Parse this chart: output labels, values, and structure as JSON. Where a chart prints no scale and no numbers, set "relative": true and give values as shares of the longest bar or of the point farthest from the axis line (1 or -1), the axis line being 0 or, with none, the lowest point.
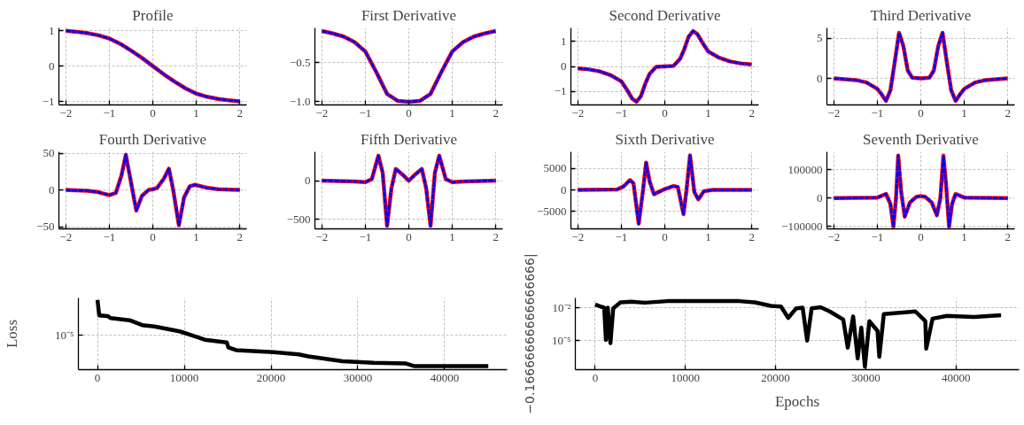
{
  "chart_data": [
    {
      "type": "line",
      "title": "Profile",
      "grid": true,
      "xlim": [
        -2.16,
        2.16
      ],
      "xticks": [
        -2,
        -1,
        0,
        1,
        2
      ],
      "ylim": [
        -1.1,
        1.08
      ],
      "yticks": [
        -1,
        0,
        1
      ],
      "x": [
        -2,
        -1.75,
        -1.5,
        -1.25,
        -1,
        -0.75,
        -0.5,
        -0.25,
        0,
        0.25,
        0.5,
        0.75,
        1,
        1.25,
        1.5,
        1.75,
        2
      ],
      "series": [
        {
          "color": "#ff0000",
          "line_style": "solid",
          "values": [
            1.0,
            0.97,
            0.93,
            0.87,
            0.78,
            0.63,
            0.44,
            0.23,
            0,
            -0.23,
            -0.44,
            -0.63,
            -0.78,
            -0.87,
            -0.93,
            -0.97,
            -1.0
          ]
        },
        {
          "color": "#0000ff",
          "line_style": "dashed",
          "values": [
            1.0,
            0.97,
            0.93,
            0.87,
            0.78,
            0.63,
            0.44,
            0.23,
            0,
            -0.23,
            -0.44,
            -0.63,
            -0.78,
            -0.87,
            -0.93,
            -0.97,
            -1.0
          ]
        }
      ]
    },
    {
      "type": "line",
      "title": "First Derivative",
      "grid": true,
      "xlim": [
        -2.16,
        2.16
      ],
      "xticks": [
        -2,
        -1,
        0,
        1,
        2
      ],
      "ylim": [
        -1.04,
        -0.06
      ],
      "yticks": [
        {
          "value": -1,
          "label": "−1.0"
        },
        -0.5
      ],
      "x": [
        -2,
        -1.75,
        -1.5,
        -1.25,
        -1,
        -0.75,
        -0.5,
        -0.25,
        0,
        0.25,
        0.5,
        0.75,
        1,
        1.25,
        1.5,
        1.75,
        2
      ],
      "series": [
        {
          "color": "#ff0000",
          "line_style": "solid",
          "values": [
            -0.1,
            -0.13,
            -0.17,
            -0.24,
            -0.36,
            -0.62,
            -0.9,
            -0.99,
            -1.0,
            -0.99,
            -0.9,
            -0.62,
            -0.36,
            -0.24,
            -0.17,
            -0.13,
            -0.1
          ]
        },
        {
          "color": "#0000ff",
          "line_style": "dashed",
          "values": [
            -0.1,
            -0.13,
            -0.17,
            -0.24,
            -0.36,
            -0.62,
            -0.9,
            -0.99,
            -1.0,
            -0.99,
            -0.9,
            -0.62,
            -0.36,
            -0.24,
            -0.17,
            -0.13,
            -0.1
          ]
        }
      ]
    },
    {
      "type": "line",
      "title": "Second Derivative",
      "grid": true,
      "xlim": [
        -2.16,
        2.16
      ],
      "xticks": [
        -2,
        -1,
        0,
        1,
        2
      ],
      "ylim": [
        -1.55,
        1.55
      ],
      "yticks": [
        -1,
        0,
        1
      ],
      "x": [
        -2,
        -1.75,
        -1.5,
        -1.25,
        -1,
        -0.85,
        -0.75,
        -0.65,
        -0.55,
        -0.45,
        -0.35,
        -0.2,
        0,
        0.2,
        0.35,
        0.45,
        0.55,
        0.65,
        0.75,
        0.85,
        1,
        1.25,
        1.5,
        1.75,
        2
      ],
      "series": [
        {
          "color": "#ff0000",
          "line_style": "solid",
          "values": [
            -0.08,
            -0.12,
            -0.2,
            -0.35,
            -0.6,
            -1.0,
            -1.3,
            -1.42,
            -1.2,
            -0.7,
            -0.3,
            -0.02,
            0,
            0.02,
            0.3,
            0.7,
            1.2,
            1.42,
            1.3,
            1.0,
            0.6,
            0.35,
            0.2,
            0.12,
            0.08
          ]
        },
        {
          "color": "#0000ff",
          "line_style": "dashed",
          "values": [
            -0.08,
            -0.12,
            -0.2,
            -0.35,
            -0.6,
            -1.0,
            -1.3,
            -1.42,
            -1.2,
            -0.7,
            -0.3,
            -0.02,
            0,
            0.02,
            0.3,
            0.7,
            1.2,
            1.42,
            1.3,
            1.0,
            0.6,
            0.35,
            0.2,
            0.12,
            0.08
          ]
        }
      ]
    },
    {
      "type": "line",
      "title": "Third Derivative",
      "grid": true,
      "xlim": [
        -2.16,
        2.16
      ],
      "xticks": [
        -2,
        -1,
        0,
        1,
        2
      ],
      "ylim": [
        -3.3,
        6.3
      ],
      "yticks": [
        0,
        5
      ],
      "x": [
        -2,
        -1.5,
        -1.25,
        -1,
        -0.9,
        -0.8,
        -0.7,
        -0.6,
        -0.5,
        -0.4,
        -0.3,
        -0.2,
        0,
        0.2,
        0.3,
        0.4,
        0.5,
        0.6,
        0.7,
        0.8,
        0.9,
        1,
        1.25,
        1.5,
        2
      ],
      "series": [
        {
          "color": "#ff0000",
          "line_style": "solid",
          "values": [
            0,
            -0.2,
            -0.5,
            -1.3,
            -2.0,
            -2.8,
            -1.5,
            2.0,
            5.7,
            4.0,
            1.0,
            0.1,
            0,
            0.1,
            1.0,
            4.0,
            5.7,
            2.0,
            -1.5,
            -2.8,
            -2.0,
            -1.3,
            -0.5,
            -0.2,
            0
          ]
        },
        {
          "color": "#0000ff",
          "line_style": "dashed",
          "values": [
            0,
            -0.2,
            -0.5,
            -1.3,
            -2.0,
            -2.8,
            -1.5,
            2.0,
            5.7,
            4.0,
            1.0,
            0.1,
            0,
            0.1,
            1.0,
            4.0,
            5.7,
            2.0,
            -1.5,
            -2.8,
            -2.0,
            -1.3,
            -0.5,
            -0.2,
            0
          ]
        }
      ]
    },
    {
      "type": "line",
      "title": "Fourth Derivative",
      "grid": true,
      "xlim": [
        -2.16,
        2.16
      ],
      "xticks": [
        -2,
        -1,
        0,
        1,
        2
      ],
      "ylim": [
        -53,
        52
      ],
      "yticks": [
        -50,
        0,
        50
      ],
      "x": [
        -2,
        -1.5,
        -1.25,
        -1,
        -0.85,
        -0.72,
        -0.62,
        -0.5,
        -0.38,
        -0.25,
        -0.1,
        0,
        0.1,
        0.25,
        0.37,
        0.47,
        0.6,
        0.72,
        0.85,
        0.97,
        1.25,
        1.5,
        2
      ],
      "series": [
        {
          "color": "#ff0000",
          "line_style": "solid",
          "values": [
            0,
            -1,
            -3,
            -7,
            -4,
            20,
            48,
            10,
            -28,
            -8,
            0,
            1,
            3,
            15,
            29,
            0,
            -48,
            -10,
            5,
            7,
            3,
            1,
            0
          ]
        },
        {
          "color": "#0000ff",
          "line_style": "dashed",
          "values": [
            0,
            -1,
            -3,
            -7,
            -4,
            20,
            48,
            10,
            -28,
            -8,
            0,
            1,
            3,
            15,
            29,
            0,
            -48,
            -10,
            5,
            7,
            3,
            1,
            0
          ]
        }
      ]
    },
    {
      "type": "line",
      "title": "Fifth Derivative",
      "grid": true,
      "xlim": [
        -2.16,
        2.16
      ],
      "xticks": [
        -2,
        -1,
        0,
        1,
        2
      ],
      "ylim": [
        -620,
        370
      ],
      "yticks": [
        -500,
        0
      ],
      "x": [
        -2,
        -1.25,
        -1,
        -0.85,
        -0.7,
        -0.6,
        -0.5,
        -0.4,
        -0.3,
        -0.15,
        0,
        0.15,
        0.3,
        0.4,
        0.5,
        0.6,
        0.7,
        0.85,
        1,
        1.25,
        2
      ],
      "series": [
        {
          "color": "#ff0000",
          "line_style": "solid",
          "values": [
            0,
            -10,
            -20,
            20,
            320,
            100,
            -580,
            -100,
            150,
            80,
            0,
            80,
            150,
            -100,
            -580,
            100,
            320,
            20,
            -20,
            -10,
            0
          ]
        },
        {
          "color": "#0000ff",
          "line_style": "dashed",
          "values": [
            0,
            -10,
            -20,
            20,
            320,
            100,
            -580,
            -100,
            150,
            80,
            0,
            80,
            150,
            -100,
            -580,
            100,
            320,
            20,
            -20,
            -10,
            0
          ]
        }
      ]
    },
    {
      "type": "line",
      "title": "Sixth Derivative",
      "grid": true,
      "xlim": [
        -2.16,
        2.16
      ],
      "xticks": [
        -2,
        -1,
        0,
        1,
        2
      ],
      "ylim": [
        -9000,
        8800
      ],
      "yticks": [
        -5000,
        0,
        5000
      ],
      "x": [
        -2,
        -1.1,
        -0.95,
        -0.8,
        -0.72,
        -0.6,
        -0.5,
        -0.43,
        -0.35,
        -0.25,
        0,
        0.2,
        0.3,
        0.43,
        0.5,
        0.58,
        0.68,
        0.77,
        0.9,
        1.1,
        2
      ],
      "series": [
        {
          "color": "#ff0000",
          "line_style": "solid",
          "values": [
            0,
            100,
            800,
            2300,
            1500,
            -7800,
            0,
            6300,
            2000,
            -1000,
            200,
            900,
            700,
            -5600,
            0,
            8000,
            -500,
            -2200,
            -300,
            0,
            0
          ]
        },
        {
          "color": "#0000ff",
          "line_style": "dashed",
          "values": [
            0,
            100,
            800,
            2300,
            1500,
            -7800,
            0,
            6300,
            2000,
            -1000,
            200,
            900,
            700,
            -5600,
            0,
            8000,
            -500,
            -2200,
            -300,
            0,
            0
          ]
        }
      ]
    },
    {
      "type": "line",
      "title": "Seventh Derivative",
      "grid": true,
      "xlim": [
        -2.16,
        2.16
      ],
      "xticks": [
        -2,
        -1,
        0,
        1,
        2
      ],
      "ylim": [
        -108000,
        163000
      ],
      "yticks": [
        -100000,
        0,
        100000
      ],
      "x": [
        -2,
        -1,
        -0.8,
        -0.7,
        -0.63,
        -0.57,
        -0.52,
        -0.45,
        -0.37,
        -0.25,
        -0.1,
        0,
        0.1,
        0.25,
        0.37,
        0.45,
        0.52,
        0.58,
        0.65,
        0.72,
        0.8,
        1,
        2
      ],
      "series": [
        {
          "color": "#ff0000",
          "line_style": "solid",
          "values": [
            0,
            2000,
            15000,
            -20000,
            -100000,
            0,
            150000,
            20000,
            -65000,
            -15000,
            5000,
            7000,
            5000,
            -15000,
            -60000,
            0,
            150000,
            50000,
            -100000,
            -20000,
            15000,
            2000,
            0
          ]
        },
        {
          "color": "#0000ff",
          "line_style": "dashed",
          "values": [
            0,
            2000,
            15000,
            -20000,
            -100000,
            0,
            150000,
            20000,
            -65000,
            -15000,
            5000,
            7000,
            5000,
            -15000,
            -60000,
            0,
            150000,
            50000,
            -100000,
            -20000,
            15000,
            2000,
            0
          ]
        }
      ]
    },
    {
      "type": "line",
      "ylabel": "Loss",
      "relative": true,
      "annotations": [
        "10⁻⁵"
      ],
      "grid": true,
      "xlim": [
        -2200,
        47200
      ],
      "xticks": [
        0,
        10000,
        20000,
        30000,
        40000
      ],
      "x": [
        0,
        200,
        1170,
        1530,
        3700,
        5150,
        6580,
        9470,
        10920,
        12360,
        14900,
        15080,
        15980,
        20310,
        23200,
        24280,
        28250,
        31860,
        35470,
        36550,
        45030
      ],
      "series": [
        {
          "color": "#000000",
          "line_style": "solid",
          "values": [
            1.0,
            0.78,
            0.77,
            0.74,
            0.71,
            0.64,
            0.62,
            0.55,
            0.49,
            0.43,
            0.39,
            0.32,
            0.28,
            0.25,
            0.22,
            0.19,
            0.12,
            0.1,
            0.09,
            0.05,
            0.05
          ]
        }
      ]
    },
    {
      "type": "line",
      "xlabel": "Epochs",
      "ylabel": "−0.16666666666666666|",
      "log": "y",
      "grid": true,
      "xlim": [
        -2200,
        47000
      ],
      "xticks": [
        0,
        10000,
        20000,
        30000,
        40000
      ],
      "ylim": [
        2.4e-08,
        0.069
      ],
      "yticks": [
        {
          "value": 1e-05,
          "label": "10⁻⁵"
        },
        {
          "value": 0.01,
          "label": "10⁻²"
        }
      ],
      "x": [
        0,
        600,
        1000,
        1190,
        1400,
        1690,
        2000,
        2800,
        4000,
        5500,
        8000,
        16000,
        17700,
        19500,
        20600,
        21400,
        22300,
        23000,
        23500,
        24000,
        25000,
        26000,
        27500,
        28000,
        28600,
        29100,
        29500,
        29900,
        30400,
        31300,
        31500,
        32000,
        35500,
        36600,
        36700,
        37400,
        39000,
        42000,
        45000
      ],
      "series": [
        {
          "color": "#000000",
          "line_style": "solid",
          "values": [
            0.018,
            0.0115,
            0.0093,
            1.15e-05,
            0.0093,
            5.8e-06,
            0.0081,
            0.0275,
            0.0316,
            0.0257,
            0.0355,
            0.0355,
            0.0275,
            0.0132,
            0.0115,
            0.0011,
            0.0081,
            0.0093,
            1e-05,
            0.0081,
            0.01,
            0.0042,
            0.00078,
            2.3e-06,
            0.0015,
            2.5e-07,
            0.000145,
            4.6e-08,
            0.00056,
            7.4e-05,
            3.5e-07,
            0.00245,
            0.0042,
            0.00056,
            1.9e-06,
            0.00095,
            0.0017,
            0.00135,
            0.0019
          ]
        }
      ]
    }
  ]
}
